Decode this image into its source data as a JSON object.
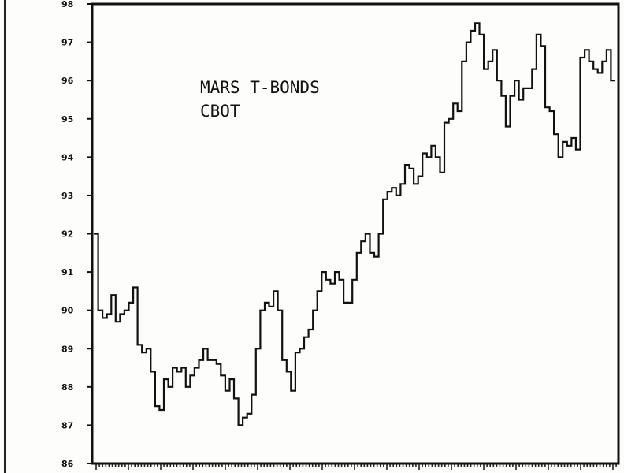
{
  "chart_data": {
    "type": "line",
    "title": [
      "MARS T-BONDS",
      "CBOT"
    ],
    "xlabel": "",
    "ylabel": "",
    "ylim": [
      86,
      98
    ],
    "yticks": [
      "86",
      "87",
      "88",
      "89",
      "90",
      "91",
      "92",
      "93",
      "94",
      "95",
      "96",
      "97",
      "98"
    ],
    "grid": false,
    "series": [
      {
        "values": [
          92.0,
          90.0,
          89.8,
          89.9,
          90.4,
          89.7,
          89.9,
          90.0,
          90.2,
          90.6,
          89.1,
          88.9,
          89.0,
          88.4,
          87.5,
          87.4,
          88.2,
          88.0,
          88.5,
          88.4,
          88.5,
          88.0,
          88.3,
          88.5,
          88.7,
          89.0,
          88.7,
          88.7,
          88.6,
          88.3,
          87.9,
          88.2,
          87.7,
          87.0,
          87.2,
          87.3,
          87.8,
          89.0,
          90.0,
          90.2,
          90.1,
          90.5,
          90.0,
          88.7,
          88.4,
          87.9,
          88.9,
          89.0,
          89.3,
          89.5,
          90.0,
          90.5,
          91.0,
          90.8,
          90.7,
          91.0,
          90.8,
          90.2,
          90.2,
          90.8,
          91.5,
          91.8,
          92.0,
          91.5,
          91.4,
          92.0,
          92.9,
          93.1,
          93.2,
          93.0,
          93.3,
          93.8,
          93.7,
          93.3,
          93.5,
          94.1,
          94.0,
          94.3,
          94.0,
          93.6,
          94.9,
          95.0,
          95.4,
          95.2,
          96.5,
          97.0,
          97.3,
          97.5,
          97.2,
          96.3,
          96.5,
          96.8,
          96.0,
          95.6,
          94.8,
          95.6,
          96.0,
          95.5,
          95.8,
          95.8,
          96.3,
          97.2,
          96.9,
          95.3,
          95.2,
          94.6,
          94.0,
          94.4,
          94.3,
          94.5,
          94.2,
          96.6,
          96.8,
          96.5,
          96.3,
          96.2,
          96.5,
          96.8,
          96.0
        ]
      }
    ]
  }
}
